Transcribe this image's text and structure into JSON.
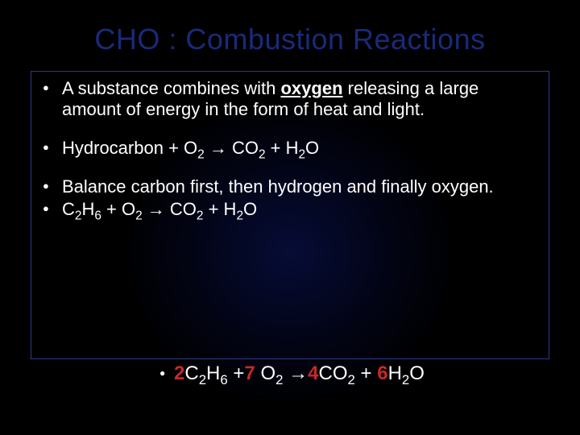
{
  "colors": {
    "background": "#000000",
    "title_color": "#1a2a7a",
    "text_color": "#ffffff",
    "border_color": "#2a3a8a",
    "coefficient_color": "#c82828"
  },
  "title": "CHO : Combustion Reactions",
  "bullets": {
    "b1_pre": "A substance combines with ",
    "b1_oxygen": "oxygen",
    "b1_post": " releasing a large amount of energy in the form of heat and light.",
    "b2_t1": "Hydrocarbon + O",
    "b2_s1": "2",
    "b2_t2": " ",
    "b2_arrow": "→",
    "b2_t3": " CO",
    "b2_s2": "2",
    "b2_t4": " + H",
    "b2_s3": "2",
    "b2_t5": "O",
    "b3": "Balance carbon first, then hydrogen and finally oxygen.",
    "b4_t1": "C",
    "b4_s1": "2",
    "b4_t2": "H",
    "b4_s2": "6",
    "b4_t3": " + O",
    "b4_s3": "2",
    "b4_t4": " ",
    "b4_arrow": "→",
    "b4_t5": " CO",
    "b4_s4": "2",
    "b4_t6": " + H",
    "b4_s5": "2",
    "b4_t7": "O"
  },
  "final": {
    "c1": "2",
    "t1": "C",
    "s1": "2",
    "t2": "H",
    "s2": "6",
    "t3": " +",
    "c2": "7",
    "t4": " O",
    "s3": "2",
    "t5": " ",
    "arrow": "→",
    "c3": "4",
    "t6": "CO",
    "s4": "2",
    "t7": " + ",
    "c4": "6",
    "t8": "H",
    "s5": "2",
    "t9": "O"
  }
}
